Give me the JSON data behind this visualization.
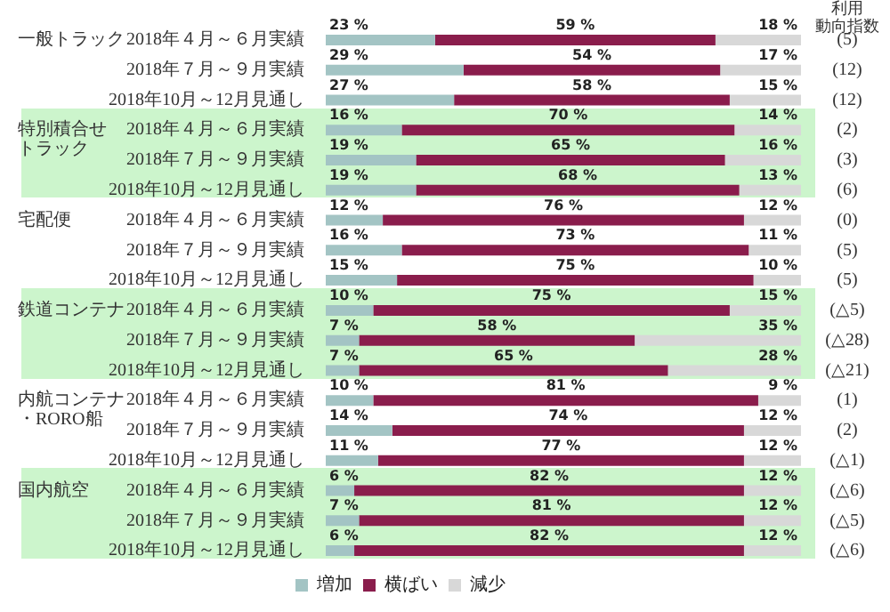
{
  "chart_data": {
    "type": "bar",
    "orientation": "horizontal",
    "stacked": true,
    "tick_labels": "y",
    "legend": "bottom",
    "grid": false,
    "categories": [
      "2018年４月～６月実績",
      "2018年７月～９月実績",
      "2018年10月～12月見通し",
      "2018年４月～６月実績",
      "2018年７月～９月実績",
      "2018年10月～12月見通し",
      "2018年４月～６月実績",
      "2018年７月～９月実績",
      "2018年10月～12月見通し",
      "2018年４月～６月実績",
      "2018年７月～９月実績",
      "2018年10月～12月見通し",
      "2018年４月～６月実績",
      "2018年７月～９月実績",
      "2018年10月～12月見通し",
      "2018年４月～６月実績",
      "2018年７月～９月実績",
      "2018年10月～12月見通し"
    ],
    "series": [
      {
        "name": "増加",
        "color": "#a3c4c4",
        "values": [
          23,
          29,
          27,
          16,
          19,
          19,
          12,
          16,
          15,
          10,
          7,
          7,
          10,
          14,
          11,
          6,
          7,
          6
        ],
        "value_labels": [
          "23 %",
          "29 %",
          "27 %",
          "16 %",
          "19 %",
          "19 %",
          "12 %",
          "16 %",
          "15 %",
          "10 %",
          "7 %",
          "7 %",
          "10 %",
          "14 %",
          "11 %",
          "6 %",
          "7 %",
          "6 %"
        ]
      },
      {
        "name": "横ばい",
        "color": "#8a1d4c",
        "values": [
          59,
          54,
          58,
          70,
          65,
          68,
          76,
          73,
          75,
          75,
          58,
          65,
          81,
          74,
          77,
          82,
          81,
          82
        ],
        "value_labels": [
          "59 %",
          "54 %",
          "58 %",
          "70 %",
          "65 %",
          "68 %",
          "76 %",
          "73 %",
          "75 %",
          "75 %",
          "58 %",
          "65 %",
          "81 %",
          "74 %",
          "77 %",
          "82 %",
          "81 %",
          "82 %"
        ]
      },
      {
        "name": "減少",
        "color": "#d8d8d8",
        "values": [
          18,
          17,
          15,
          14,
          16,
          13,
          12,
          11,
          10,
          15,
          35,
          28,
          9,
          12,
          12,
          12,
          12,
          12
        ],
        "value_labels": [
          "18 %",
          "17 %",
          "15 %",
          "14 %",
          "16 %",
          "13 %",
          "12 %",
          "11 %",
          "10 %",
          "15 %",
          "35 %",
          "28 %",
          "9 %",
          "12 %",
          "12 %",
          "12 %",
          "12 %",
          "12 %"
        ]
      }
    ],
    "annotations": [
      "利用動向指数",
      "一般トラック",
      "特別積合せトラック",
      "宅配便",
      "鉄道コンテナ",
      "内航コンテナ・RORO船",
      "国内航空",
      "(5)",
      "(12)",
      "(12)",
      "(2)",
      "(3)",
      "(6)",
      "(0)",
      "(5)",
      "(5)",
      "(△5)",
      "(△28)",
      "(△21)",
      "(1)",
      "(2)",
      "(△1)",
      "(△6)",
      "(△5)",
      "(△6)"
    ]
  }
}
